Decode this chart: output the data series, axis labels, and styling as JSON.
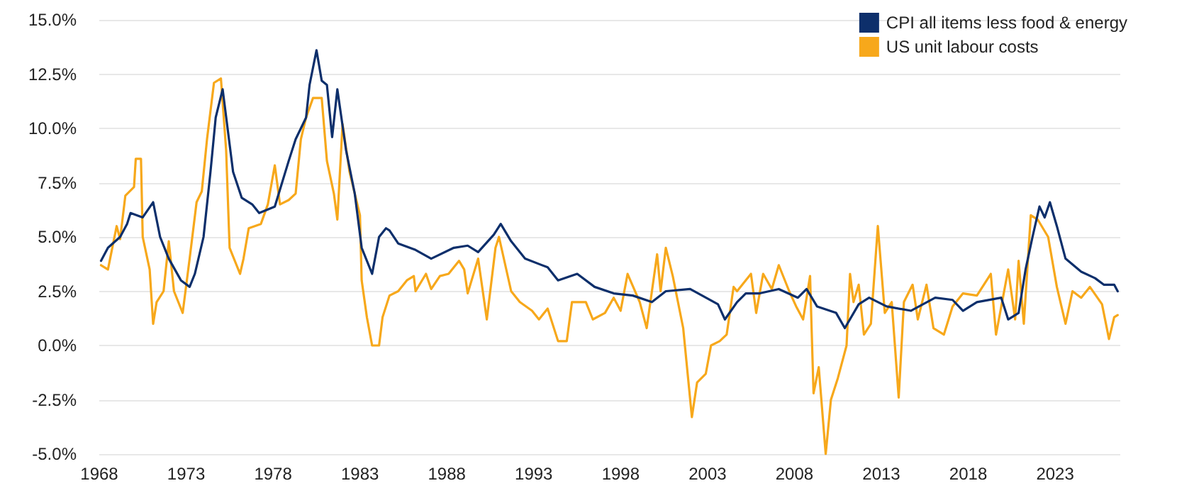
{
  "chart_data": {
    "type": "line",
    "xlim": [
      1968,
      2026.75
    ],
    "xticks": [
      1968,
      1973,
      1978,
      1983,
      1988,
      1993,
      1998,
      2003,
      2008,
      2013,
      2018,
      2023
    ],
    "ylim": [
      -5,
      15
    ],
    "yticks": [
      {
        "value": -5,
        "label": "-5.0%"
      },
      {
        "value": -2.5,
        "label": "-2.5%"
      },
      {
        "value": 0,
        "label": "0.0%"
      },
      {
        "value": 2.5,
        "label": "2.5%"
      },
      {
        "value": 5,
        "label": "5.0%"
      },
      {
        "value": 7.5,
        "label": "7.5%"
      },
      {
        "value": 10,
        "label": "10.0%"
      },
      {
        "value": 12.5,
        "label": "12.5%"
      },
      {
        "value": 15,
        "label": "15.0%"
      }
    ],
    "grid": "y",
    "legend": "top right",
    "marker": "none",
    "line_style": "solid",
    "series": [
      {
        "name": "CPI all items less food & energy",
        "color": "#0d2f6b",
        "x": [
          1968.1,
          1968.5,
          1969.2,
          1969.6,
          1969.8,
          1970.5,
          1971.1,
          1971.5,
          1972.0,
          1972.7,
          1973.2,
          1973.5,
          1974.0,
          1974.4,
          1974.7,
          1975.1,
          1975.7,
          1976.2,
          1976.8,
          1977.2,
          1978.1,
          1978.9,
          1979.3,
          1979.9,
          1980.1,
          1980.5,
          1980.8,
          1981.1,
          1981.4,
          1981.7,
          1982.2,
          1982.7,
          1983.1,
          1983.7,
          1984.1,
          1984.5,
          1984.7,
          1985.2,
          1986.2,
          1987.1,
          1988.4,
          1989.2,
          1989.8,
          1990.7,
          1991.1,
          1991.7,
          1992.5,
          1993.8,
          1994.4,
          1995.5,
          1996.5,
          1997.6,
          1998.7,
          1999.8,
          2000.6,
          2002.0,
          2003.6,
          2004.0,
          2004.7,
          2005.2,
          2006.0,
          2007.1,
          2008.2,
          2008.7,
          2009.3,
          2010.4,
          2010.9,
          2011.7,
          2012.3,
          2013.3,
          2014.7,
          2016.1,
          2017.1,
          2017.7,
          2018.5,
          2019.9,
          2020.3,
          2020.9,
          2021.3,
          2021.7,
          2022.1,
          2022.4,
          2022.7,
          2023.1,
          2023.6,
          2024.5,
          2025.3,
          2025.8,
          2026.4,
          2026.6
        ],
        "values": [
          3.9,
          4.5,
          5.0,
          5.6,
          6.1,
          5.9,
          6.6,
          5.0,
          4.0,
          3.0,
          2.7,
          3.3,
          5.0,
          8.0,
          10.5,
          11.8,
          8.0,
          6.8,
          6.5,
          6.1,
          6.4,
          8.5,
          9.5,
          10.5,
          12.0,
          13.6,
          12.2,
          12.0,
          9.6,
          11.8,
          9.0,
          7.0,
          4.5,
          3.3,
          5.0,
          5.4,
          5.3,
          4.7,
          4.4,
          4.0,
          4.5,
          4.6,
          4.3,
          5.1,
          5.6,
          4.8,
          4.0,
          3.6,
          3.0,
          3.3,
          2.7,
          2.4,
          2.3,
          2.0,
          2.5,
          2.6,
          1.9,
          1.2,
          2.0,
          2.4,
          2.4,
          2.6,
          2.2,
          2.6,
          1.8,
          1.5,
          0.8,
          1.9,
          2.2,
          1.8,
          1.6,
          2.2,
          2.1,
          1.6,
          2.0,
          2.2,
          1.2,
          1.5,
          3.5,
          5.0,
          6.4,
          5.9,
          6.6,
          5.5,
          4.0,
          3.4,
          3.1,
          2.8,
          2.8,
          2.5
        ]
      },
      {
        "name": "US unit labour costs",
        "color": "#f7a81b",
        "x": [
          1968.1,
          1968.5,
          1968.7,
          1969.0,
          1969.2,
          1969.5,
          1970.0,
          1970.1,
          1970.4,
          1970.5,
          1970.9,
          1971.1,
          1971.3,
          1971.7,
          1972.0,
          1972.3,
          1972.8,
          1973.2,
          1973.6,
          1973.9,
          1974.2,
          1974.6,
          1975.0,
          1975.3,
          1975.5,
          1976.1,
          1976.3,
          1976.6,
          1977.3,
          1977.7,
          1978.1,
          1978.4,
          1978.9,
          1979.3,
          1979.6,
          1979.9,
          1980.3,
          1980.8,
          1981.1,
          1981.5,
          1981.7,
          1982.0,
          1982.4,
          1983.0,
          1983.1,
          1983.4,
          1983.7,
          1984.1,
          1984.3,
          1984.7,
          1985.2,
          1985.7,
          1986.1,
          1986.2,
          1986.8,
          1987.1,
          1987.6,
          1988.1,
          1988.7,
          1989.0,
          1989.2,
          1989.8,
          1990.3,
          1990.8,
          1991.0,
          1991.7,
          1992.2,
          1992.9,
          1993.3,
          1993.8,
          1994.4,
          1994.9,
          1995.2,
          1996.0,
          1996.4,
          1997.1,
          1997.6,
          1998.0,
          1998.4,
          1999.1,
          1999.5,
          2000.1,
          2000.3,
          2000.6,
          2001.0,
          2001.6,
          2002.1,
          2002.4,
          2002.9,
          2003.2,
          2003.7,
          2004.1,
          2004.5,
          2004.7,
          2005.5,
          2005.8,
          2006.2,
          2006.7,
          2007.1,
          2007.7,
          2008.1,
          2008.5,
          2008.9,
          2009.1,
          2009.4,
          2009.8,
          2010.1,
          2010.5,
          2011.0,
          2011.2,
          2011.4,
          2011.7,
          2012.0,
          2012.4,
          2012.8,
          2013.2,
          2013.6,
          2014.0,
          2014.3,
          2014.8,
          2015.1,
          2015.6,
          2016.0,
          2016.6,
          2017.1,
          2017.7,
          2018.5,
          2019.3,
          2019.6,
          2020.3,
          2020.7,
          2020.9,
          2021.2,
          2021.6,
          2022.0,
          2022.6,
          2023.1,
          2023.6,
          2024.0,
          2024.5,
          2025.0,
          2025.7,
          2026.1,
          2026.4,
          2026.6
        ],
        "values": [
          3.7,
          3.5,
          4.3,
          5.5,
          4.9,
          6.9,
          7.3,
          8.6,
          8.6,
          5.0,
          3.5,
          1.0,
          2.0,
          2.5,
          4.8,
          2.5,
          1.5,
          4.0,
          6.6,
          7.1,
          9.5,
          12.1,
          12.3,
          9.0,
          4.5,
          3.3,
          4.0,
          5.4,
          5.6,
          6.5,
          8.3,
          6.5,
          6.7,
          7.0,
          9.5,
          10.5,
          11.4,
          11.4,
          8.5,
          7.0,
          5.8,
          10.2,
          8.0,
          6.0,
          3.0,
          1.3,
          0.0,
          0.0,
          1.3,
          2.3,
          2.5,
          3.0,
          3.2,
          2.5,
          3.3,
          2.6,
          3.2,
          3.3,
          3.9,
          3.5,
          2.4,
          4.0,
          1.2,
          4.5,
          5.0,
          2.5,
          2.0,
          1.6,
          1.2,
          1.7,
          0.2,
          0.2,
          2.0,
          2.0,
          1.2,
          1.5,
          2.2,
          1.6,
          3.3,
          2.0,
          0.8,
          4.2,
          2.5,
          4.5,
          3.2,
          0.8,
          -3.3,
          -1.7,
          -1.3,
          0.0,
          0.2,
          0.5,
          2.7,
          2.5,
          3.3,
          1.5,
          3.3,
          2.6,
          3.7,
          2.5,
          1.8,
          1.2,
          3.2,
          -2.2,
          -1.0,
          -5.0,
          -2.5,
          -1.5,
          0.0,
          3.3,
          2.0,
          2.8,
          0.5,
          1.0,
          5.5,
          1.5,
          2.0,
          -2.4,
          2.0,
          2.8,
          1.2,
          2.8,
          0.8,
          0.5,
          1.8,
          2.4,
          2.3,
          3.3,
          0.5,
          3.5,
          1.2,
          3.9,
          1.0,
          6.0,
          5.8,
          5.0,
          2.7,
          1.0,
          2.5,
          2.2,
          2.7,
          1.9,
          0.3,
          1.3,
          1.4
        ]
      }
    ]
  }
}
